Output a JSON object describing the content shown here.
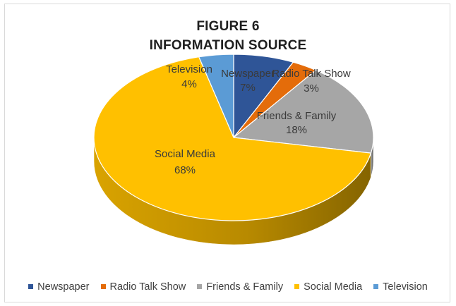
{
  "chart_data": {
    "type": "pie",
    "title": "FIGURE 6",
    "subtitle": "INFORMATION SOURCE",
    "legend_position": "bottom",
    "three_d": true,
    "slices": [
      {
        "label": "Newspaper",
        "value": 7,
        "percent_label": "7%",
        "color": "#2f5597"
      },
      {
        "label": "Radio Talk Show",
        "value": 3,
        "percent_label": "3%",
        "color": "#e46c0a"
      },
      {
        "label": "Friends & Family",
        "value": 18,
        "percent_label": "18%",
        "color": "#a6a6a6"
      },
      {
        "label": "Social Media",
        "value": 68,
        "percent_label": "68%",
        "color": "#ffc000"
      },
      {
        "label": "Television",
        "value": 4,
        "percent_label": "4%",
        "color": "#5b9bd5"
      }
    ]
  },
  "legend": {
    "items": [
      "Newspaper",
      "Radio Talk Show",
      "Friends & Family",
      "Social Media",
      "Television"
    ]
  }
}
